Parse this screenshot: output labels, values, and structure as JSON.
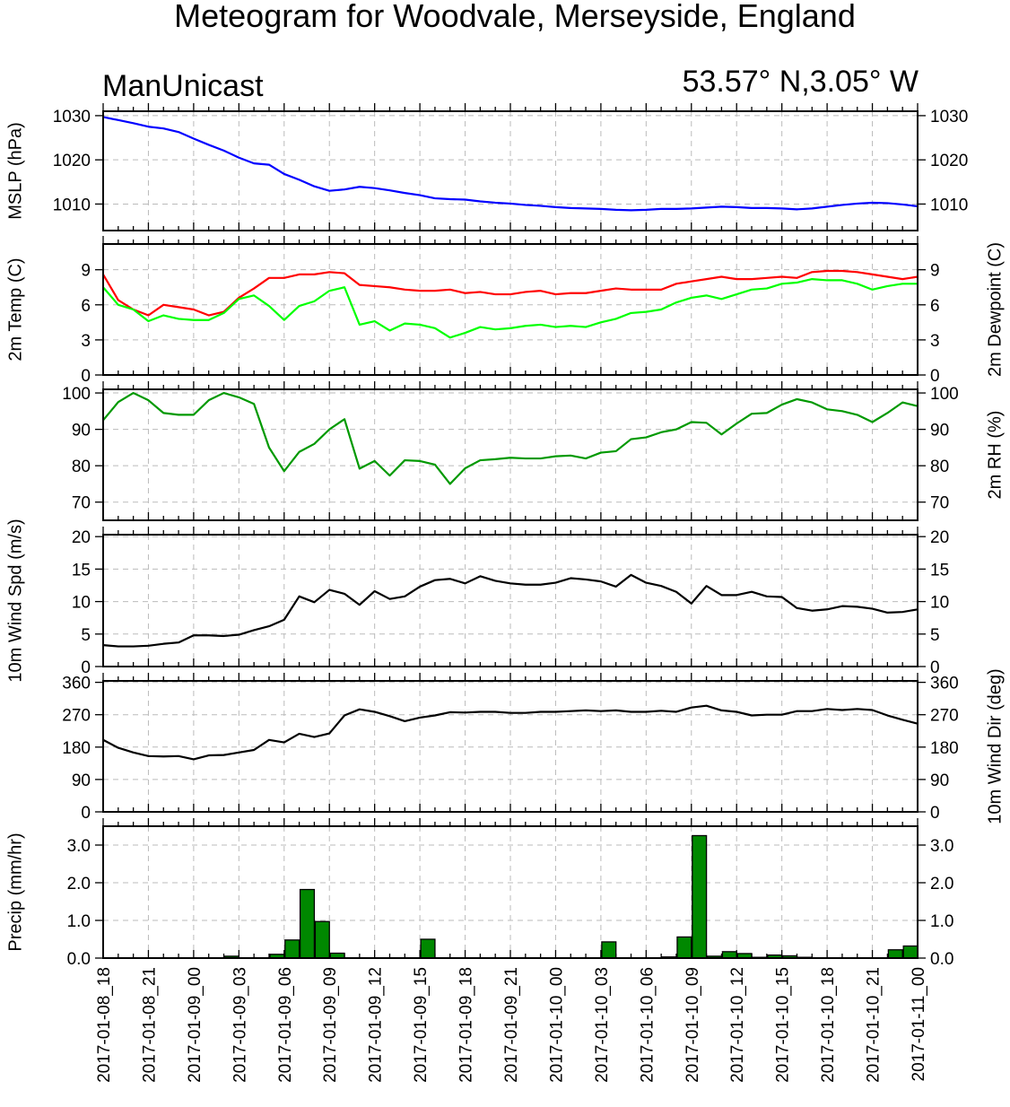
{
  "title": "Meteogram for Woodvale, Merseyside, England",
  "model": "ManUnicast",
  "location": "53.57° N,3.05° W",
  "x_tick_labels": [
    "2017-01-08_18",
    "2017-01-08_21",
    "2017-01-09_00",
    "2017-01-09_03",
    "2017-01-09_06",
    "2017-01-09_09",
    "2017-01-09_12",
    "2017-01-09_15",
    "2017-01-09_18",
    "2017-01-09_21",
    "2017-01-10_00",
    "2017-01-10_03",
    "2017-01-10_06",
    "2017-01-10_09",
    "2017-01-10_12",
    "2017-01-10_15",
    "2017-01-10_18",
    "2017-01-10_21",
    "2017-01-11_00"
  ],
  "chart_data": [
    {
      "type": "line",
      "ylabel": "MSLP (hPa)",
      "ylim": [
        1004,
        1031
      ],
      "yticks": [
        1010,
        1020,
        1030
      ],
      "x_hours": [
        0,
        1,
        2,
        3,
        4,
        5,
        6,
        7,
        8,
        9,
        10,
        11,
        12,
        13,
        14,
        15,
        16,
        17,
        18,
        19,
        20,
        21,
        22,
        23,
        24,
        25,
        26,
        27,
        28,
        29,
        30,
        31,
        32,
        33,
        34,
        35,
        36,
        37,
        38,
        39,
        40,
        41,
        42,
        43,
        44,
        45,
        46,
        47,
        48,
        49,
        50,
        51,
        52,
        53,
        54
      ],
      "series": [
        {
          "color": "#0000ff",
          "values": [
            1029.7,
            1029.0,
            1028.3,
            1027.5,
            1027.1,
            1026.3,
            1024.8,
            1023.4,
            1022.1,
            1020.5,
            1019.2,
            1018.9,
            1016.8,
            1015.5,
            1014.0,
            1013.0,
            1013.3,
            1013.9,
            1013.6,
            1013.1,
            1012.5,
            1012.0,
            1011.3,
            1011.1,
            1011.0,
            1010.6,
            1010.3,
            1010.1,
            1009.8,
            1009.6,
            1009.3,
            1009.1,
            1009.0,
            1008.9,
            1008.7,
            1008.6,
            1008.7,
            1008.9,
            1008.9,
            1009.0,
            1009.2,
            1009.4,
            1009.3,
            1009.1,
            1009.1,
            1009.0,
            1008.8,
            1009.0,
            1009.4,
            1009.8,
            1010.1,
            1010.3,
            1010.2,
            1009.9,
            1009.5
          ]
        }
      ]
    },
    {
      "type": "line",
      "ylabel": "2m Temp (C)",
      "ylabel_right": "2m Dewpoint (C)",
      "ylim": [
        0,
        11.2
      ],
      "yticks": [
        0,
        3,
        6,
        9
      ],
      "x_hours": [
        0,
        1,
        2,
        3,
        4,
        5,
        6,
        7,
        8,
        9,
        10,
        11,
        12,
        13,
        14,
        15,
        16,
        17,
        18,
        19,
        20,
        21,
        22,
        23,
        24,
        25,
        26,
        27,
        28,
        29,
        30,
        31,
        32,
        33,
        34,
        35,
        36,
        37,
        38,
        39,
        40,
        41,
        42,
        43,
        44,
        45,
        46,
        47,
        48,
        49,
        50,
        51,
        52,
        53,
        54
      ],
      "series": [
        {
          "color": "#ff0000",
          "values": [
            8.6,
            6.4,
            5.6,
            5.1,
            6.0,
            5.8,
            5.6,
            5.1,
            5.4,
            6.6,
            7.4,
            8.3,
            8.3,
            8.6,
            8.6,
            8.8,
            8.7,
            7.7,
            7.6,
            7.5,
            7.3,
            7.2,
            7.2,
            7.3,
            7.0,
            7.1,
            6.9,
            6.9,
            7.1,
            7.2,
            6.9,
            7.0,
            7.0,
            7.2,
            7.4,
            7.3,
            7.3,
            7.3,
            7.8,
            8.0,
            8.2,
            8.4,
            8.2,
            8.2,
            8.3,
            8.4,
            8.3,
            8.8,
            8.9,
            8.9,
            8.8,
            8.6,
            8.4,
            8.2,
            8.4
          ]
        },
        {
          "color": "#00ff00",
          "values": [
            7.5,
            6.0,
            5.6,
            4.6,
            5.1,
            4.8,
            4.7,
            4.7,
            5.3,
            6.5,
            6.8,
            5.9,
            4.7,
            5.9,
            6.3,
            7.2,
            7.5,
            4.3,
            4.6,
            3.8,
            4.4,
            4.3,
            4.0,
            3.2,
            3.6,
            4.1,
            3.9,
            4.0,
            4.2,
            4.3,
            4.1,
            4.2,
            4.1,
            4.5,
            4.8,
            5.3,
            5.4,
            5.6,
            6.2,
            6.6,
            6.8,
            6.5,
            6.9,
            7.3,
            7.4,
            7.8,
            7.9,
            8.2,
            8.1,
            8.1,
            7.8,
            7.3,
            7.6,
            7.8,
            7.8
          ]
        }
      ]
    },
    {
      "type": "line",
      "ylabel_right": "2m RH (%)",
      "ylim": [
        65,
        101
      ],
      "yticks": [
        70,
        80,
        90,
        100
      ],
      "x_hours": [
        0,
        1,
        2,
        3,
        4,
        5,
        6,
        7,
        8,
        9,
        10,
        11,
        12,
        13,
        14,
        15,
        16,
        17,
        18,
        19,
        20,
        21,
        22,
        23,
        24,
        25,
        26,
        27,
        28,
        29,
        30,
        31,
        32,
        33,
        34,
        35,
        36,
        37,
        38,
        39,
        40,
        41,
        42,
        43,
        44,
        45,
        46,
        47,
        48,
        49,
        50,
        51,
        52,
        53,
        54
      ],
      "series": [
        {
          "color": "#009900",
          "values": [
            92.5,
            97.5,
            100.0,
            98.0,
            94.5,
            94.0,
            94.0,
            98.0,
            100.0,
            98.8,
            97.0,
            85.0,
            78.5,
            83.8,
            86.0,
            90.0,
            92.8,
            79.2,
            81.3,
            77.3,
            81.5,
            81.3,
            80.3,
            75.0,
            79.3,
            81.5,
            81.8,
            82.2,
            82.0,
            82.0,
            82.6,
            82.8,
            82.0,
            83.6,
            84.0,
            87.3,
            87.8,
            89.2,
            90.0,
            92.0,
            91.8,
            88.6,
            91.6,
            94.3,
            94.5,
            96.8,
            98.3,
            97.4,
            95.5,
            95.0,
            94.0,
            92.0,
            94.5,
            97.4,
            96.4
          ]
        }
      ]
    },
    {
      "type": "line",
      "ylabel": "10m Wind Spd (m/s)",
      "ylim": [
        0,
        20.3
      ],
      "yticks": [
        0,
        5,
        10,
        15,
        20
      ],
      "x_hours": [
        0,
        1,
        2,
        3,
        4,
        5,
        6,
        7,
        8,
        9,
        10,
        11,
        12,
        13,
        14,
        15,
        16,
        17,
        18,
        19,
        20,
        21,
        22,
        23,
        24,
        25,
        26,
        27,
        28,
        29,
        30,
        31,
        32,
        33,
        34,
        35,
        36,
        37,
        38,
        39,
        40,
        41,
        42,
        43,
        44,
        45,
        46,
        47,
        48,
        49,
        50,
        51,
        52,
        53,
        54
      ],
      "series": [
        {
          "color": "#000000",
          "values": [
            3.3,
            3.1,
            3.1,
            3.2,
            3.5,
            3.7,
            4.8,
            4.8,
            4.7,
            4.9,
            5.6,
            6.2,
            7.2,
            10.8,
            9.9,
            11.8,
            11.2,
            9.5,
            11.6,
            10.4,
            10.8,
            12.3,
            13.3,
            13.5,
            12.8,
            13.9,
            13.2,
            12.8,
            12.6,
            12.6,
            12.9,
            13.6,
            13.4,
            13.1,
            12.3,
            14.1,
            12.9,
            12.4,
            11.5,
            9.7,
            12.4,
            11.0,
            11.0,
            11.5,
            10.8,
            10.7,
            9.0,
            8.6,
            8.8,
            9.3,
            9.2,
            8.9,
            8.3,
            8.4,
            8.8
          ]
        }
      ]
    },
    {
      "type": "line",
      "ylabel_right": "10m Wind Dir (deg)",
      "ylim": [
        0,
        364
      ],
      "yticks": [
        0,
        90,
        180,
        270,
        360
      ],
      "x_hours": [
        0,
        1,
        2,
        3,
        4,
        5,
        6,
        7,
        8,
        9,
        10,
        11,
        12,
        13,
        14,
        15,
        16,
        17,
        18,
        19,
        20,
        21,
        22,
        23,
        24,
        25,
        26,
        27,
        28,
        29,
        30,
        31,
        32,
        33,
        34,
        35,
        36,
        37,
        38,
        39,
        40,
        41,
        42,
        43,
        44,
        45,
        46,
        47,
        48,
        49,
        50,
        51,
        52,
        53,
        54
      ],
      "series": [
        {
          "color": "#000000",
          "values": [
            200,
            178,
            165,
            155,
            154,
            155,
            146,
            157,
            158,
            165,
            172,
            200,
            193,
            217,
            208,
            218,
            268,
            285,
            278,
            266,
            252,
            262,
            268,
            277,
            276,
            278,
            278,
            275,
            275,
            278,
            278,
            280,
            282,
            280,
            282,
            278,
            278,
            281,
            278,
            290,
            295,
            282,
            278,
            268,
            270,
            270,
            280,
            280,
            286,
            283,
            286,
            283,
            268,
            256,
            245
          ]
        }
      ]
    },
    {
      "type": "bar",
      "ylabel": "Precip (mm/hr)",
      "ylim": [
        0,
        3.5
      ],
      "yticks": [
        0.0,
        1.0,
        2.0,
        3.0
      ],
      "ytick_labels": [
        "0.0",
        "1.0",
        "2.0",
        "3.0"
      ],
      "series": [
        {
          "color": "#008800",
          "x_hours": [
            9,
            12,
            13,
            14,
            15,
            16,
            22,
            34,
            38,
            39,
            40,
            41,
            42,
            43,
            44,
            45,
            46,
            47,
            53,
            54
          ],
          "values": [
            0.05,
            0.1,
            0.48,
            1.82,
            0.97,
            0.13,
            0.5,
            0.43,
            0.03,
            0.56,
            3.25,
            0.05,
            0.17,
            0.12,
            0.02,
            0.08,
            0.06,
            0.02,
            0.22,
            0.32
          ]
        }
      ]
    }
  ]
}
